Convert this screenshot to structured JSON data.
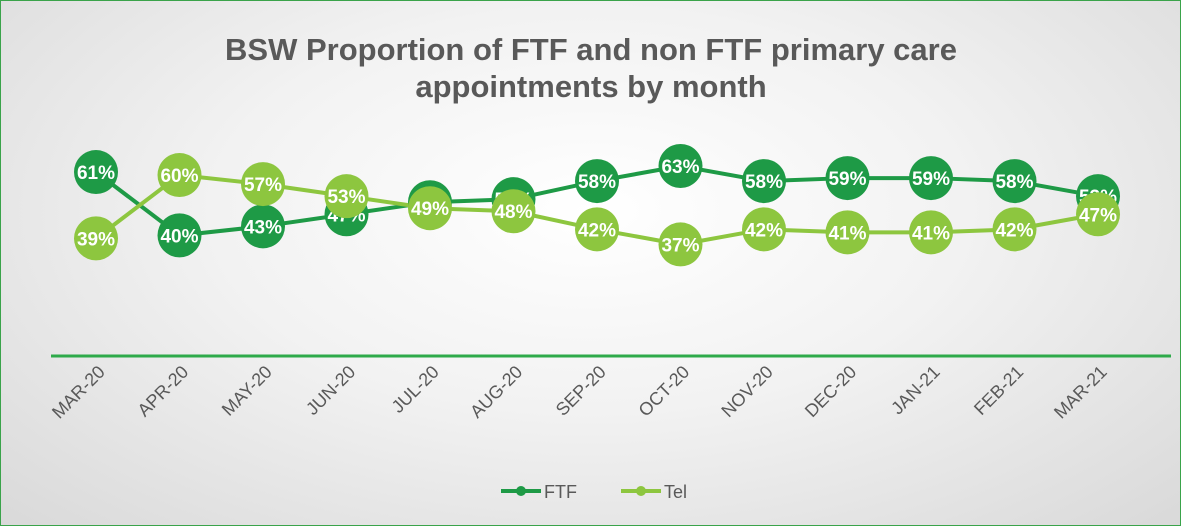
{
  "chart_data": {
    "type": "line",
    "title": "BSW Proportion of FTF and non FTF primary care appointments by month",
    "categories": [
      "MAR-20",
      "APR-20",
      "MAY-20",
      "JUN-20",
      "JUL-20",
      "AUG-20",
      "SEP-20",
      "OCT-20",
      "NOV-20",
      "DEC-20",
      "JAN-21",
      "FEB-21",
      "MAR-21"
    ],
    "series": [
      {
        "name": "FTF",
        "color": "#1e9a46",
        "values": [
          61,
          40,
          43,
          47,
          51,
          52,
          58,
          63,
          58,
          59,
          59,
          58,
          53
        ],
        "value_labels": [
          "61%",
          "40%",
          "43%",
          "47%",
          "51%",
          "52%",
          "58%",
          "63%",
          "58%",
          "59%",
          "59%",
          "58%",
          "53%"
        ]
      },
      {
        "name": "Tel",
        "color": "#8dc63f",
        "values": [
          39,
          60,
          57,
          53,
          49,
          48,
          42,
          37,
          42,
          41,
          41,
          42,
          47
        ],
        "value_labels": [
          "39%",
          "60%",
          "57%",
          "53%",
          "49%",
          "48%",
          "42%",
          "37%",
          "42%",
          "41%",
          "41%",
          "42%",
          "47%"
        ]
      }
    ],
    "legend": "bottom"
  }
}
